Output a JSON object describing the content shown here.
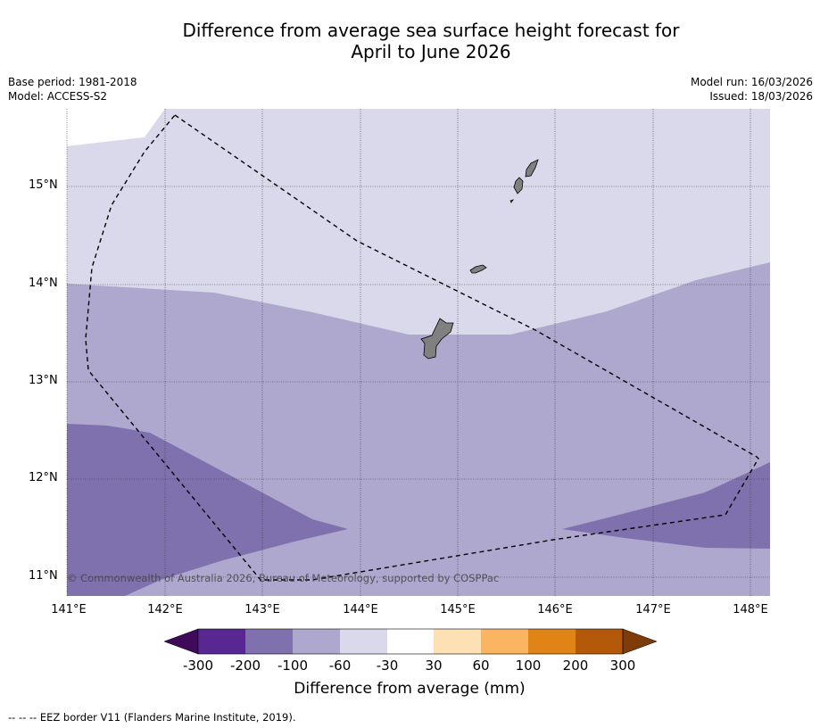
{
  "title_line1": "Difference from average sea surface height forecast for",
  "title_line2": "April to June 2026",
  "meta": {
    "base_period": "Base period: 1981-2018",
    "model": "Model: ACCESS-S2",
    "model_run": "Model run: 16/03/2026",
    "issued": "Issued: 18/03/2026"
  },
  "copyright": "© Commonwealth of Australia 2026, Bureau of Meteorology, supported by COSPPac",
  "footnote": "-- -- -- EEZ border V11 (Flanders Marine Institute, 2019).",
  "axes": {
    "x_ticks": [
      "141°E",
      "142°E",
      "143°E",
      "144°E",
      "145°E",
      "146°E",
      "147°E",
      "148°E"
    ],
    "y_ticks": [
      "15°N",
      "14°N",
      "13°N",
      "12°N",
      "11°N"
    ]
  },
  "colorbar": {
    "title": "Difference from average (mm)",
    "labels": [
      "-300",
      "-200",
      "-100",
      "-60",
      "-30",
      "30",
      "60",
      "100",
      "200",
      "300"
    ],
    "colors": [
      "#3f0a5a",
      "#582791",
      "#7f71ad",
      "#aea8cf",
      "#d9d9eb",
      "#ffffff",
      "#fee0b5",
      "#fbb45f",
      "#e18417",
      "#b35909",
      "#7f3b08"
    ]
  },
  "map_colors": {
    "light": "#d9d9eb",
    "mid": "#aea8cf",
    "dark": "#7f71ad",
    "land": "#808080"
  }
}
